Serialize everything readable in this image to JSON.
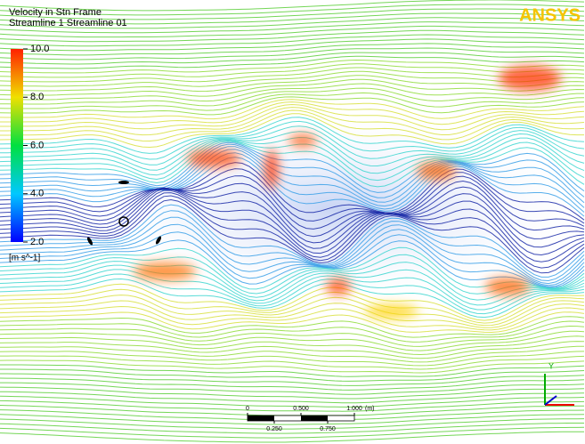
{
  "header": {
    "title": "Velocity in Stn Frame",
    "subtitle": "Streamline 1 Streamline 01",
    "logo": "ANSYS"
  },
  "legend": {
    "ticks": [
      {
        "value": 10,
        "label": "10.0"
      },
      {
        "value": 8,
        "label": "8.0"
      },
      {
        "value": 6,
        "label": "6.0"
      },
      {
        "value": 4,
        "label": "4.0"
      },
      {
        "value": 2,
        "label": "2.0"
      }
    ],
    "range": [
      2,
      10
    ],
    "unit": "[m s^-1]"
  },
  "scale_bar": {
    "top_ticks": [
      {
        "value": 0,
        "label": "0"
      },
      {
        "value": 0.5,
        "label": "0.500"
      },
      {
        "value": 1,
        "label": "1.000"
      }
    ],
    "bottom_ticks": [
      {
        "value": 0.25,
        "label": "0.250"
      },
      {
        "value": 0.75,
        "label": "0.750"
      }
    ],
    "unit": "(m)",
    "range": [
      0,
      1
    ]
  },
  "axes": {
    "y_label": "Y"
  }
}
